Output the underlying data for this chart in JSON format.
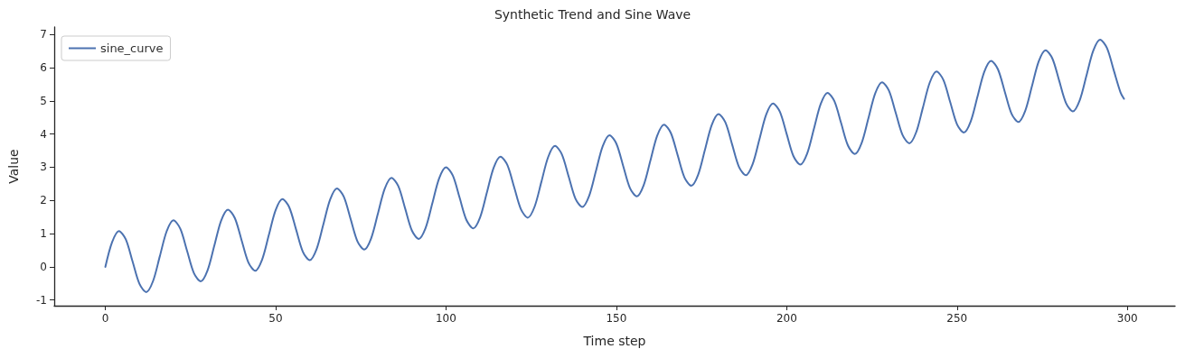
{
  "chart_data": {
    "type": "line",
    "title": "Synthetic Trend and Sine Wave",
    "xlabel": "Time step",
    "ylabel": "Value",
    "x": [
      0,
      2,
      4,
      6,
      8,
      10,
      12,
      14,
      16,
      18,
      20,
      22,
      24,
      26,
      28,
      30,
      32,
      34,
      36,
      38,
      40,
      42,
      44,
      46,
      48,
      50,
      52,
      54,
      56,
      58,
      60,
      62,
      64,
      66,
      68,
      70,
      72,
      74,
      76,
      78,
      80,
      82,
      84,
      86,
      88,
      90,
      92,
      94,
      96,
      98,
      100,
      102,
      104,
      106,
      108,
      110,
      112,
      114,
      116,
      118,
      120,
      122,
      124,
      126,
      128,
      130,
      132,
      134,
      136,
      138,
      140,
      142,
      144,
      146,
      148,
      150,
      152,
      154,
      156,
      158,
      160,
      162,
      164,
      166,
      168,
      170,
      172,
      174,
      176,
      178,
      180,
      182,
      184,
      186,
      188,
      190,
      192,
      194,
      196,
      198,
      200,
      202,
      204,
      206,
      208,
      210,
      212,
      214,
      216,
      218,
      220,
      222,
      224,
      226,
      228,
      230,
      232,
      234,
      236,
      238,
      240,
      242,
      244,
      246,
      248,
      250,
      252,
      254,
      256,
      258,
      260,
      262,
      264,
      266,
      268,
      270,
      272,
      274,
      276,
      278,
      280,
      282,
      284,
      286,
      288,
      290,
      292,
      294,
      296,
      298,
      299
    ],
    "series": [
      {
        "name": "sine_curve",
        "color": "#4c72b0",
        "values": [
          0,
          0.75,
          1.08,
          0.83,
          0.16,
          -0.51,
          -0.76,
          -0.43,
          0.32,
          1.07,
          1.4,
          1.15,
          0.48,
          -0.19,
          -0.44,
          -0.11,
          0.64,
          1.39,
          1.72,
          1.47,
          0.8,
          0.13,
          -0.12,
          0.21,
          0.96,
          1.71,
          2.04,
          1.79,
          1.12,
          0.45,
          0.2,
          0.53,
          1.28,
          2.03,
          2.36,
          2.11,
          1.44,
          0.77,
          0.52,
          0.85,
          1.6,
          2.35,
          2.68,
          2.43,
          1.76,
          1.09,
          0.84,
          1.17,
          1.92,
          2.67,
          3,
          2.75,
          2.08,
          1.41,
          1.16,
          1.49,
          2.24,
          2.99,
          3.32,
          3.07,
          2.4,
          1.73,
          1.48,
          1.81,
          2.56,
          3.31,
          3.64,
          3.39,
          2.72,
          2.05,
          1.8,
          2.13,
          2.88,
          3.63,
          3.96,
          3.71,
          3.04,
          2.37,
          2.12,
          2.45,
          3.2,
          3.95,
          4.28,
          4.03,
          3.36,
          2.69,
          2.44,
          2.77,
          3.52,
          4.27,
          4.6,
          4.35,
          3.68,
          3.01,
          2.76,
          3.09,
          3.84,
          4.59,
          4.92,
          4.67,
          4,
          3.33,
          3.08,
          3.41,
          4.16,
          4.91,
          5.24,
          4.99,
          4.32,
          3.65,
          3.4,
          3.73,
          4.48,
          5.23,
          5.56,
          5.31,
          4.64,
          3.97,
          3.72,
          4.05,
          4.8,
          5.55,
          5.88,
          5.63,
          4.96,
          4.29,
          4.04,
          4.37,
          5.12,
          5.87,
          6.2,
          5.95,
          5.28,
          4.61,
          4.36,
          4.69,
          5.44,
          6.19,
          6.52,
          6.27,
          5.6,
          4.93,
          4.68,
          5.01,
          5.76,
          6.51,
          6.84,
          6.59,
          5.92,
          5.25,
          5.06
        ]
      }
    ],
    "xlim": [
      -15,
      314
    ],
    "ylim": [
      -1.17,
      7.22
    ],
    "xticks": [
      0,
      50,
      100,
      150,
      200,
      250,
      300
    ],
    "yticks": [
      -1,
      0,
      1,
      2,
      3,
      4,
      5,
      6,
      7
    ],
    "legend": "top left",
    "marker": "none",
    "line_style": "solid"
  }
}
